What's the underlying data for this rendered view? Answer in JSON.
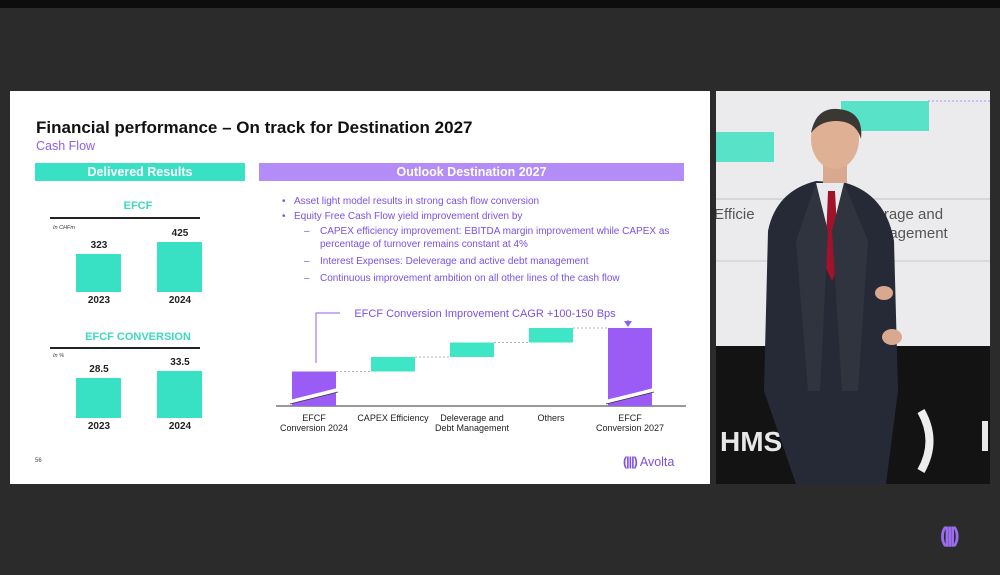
{
  "slide": {
    "title": "Financial performance – On track for Destination 2027",
    "subtitle": "Cash Flow",
    "page_number": "56",
    "logo_text": "Avolta",
    "logo_mark": "(|||)"
  },
  "delivered": {
    "header": "Delivered Results",
    "efcf": {
      "title": "EFCF",
      "unit": "In CHFm",
      "categories": [
        "2023",
        "2024"
      ],
      "values": [
        323,
        425
      ],
      "value_labels": [
        "323",
        "425"
      ]
    },
    "conversion": {
      "title": "EFCF CONVERSION",
      "unit": "In %",
      "categories": [
        "2023",
        "2024"
      ],
      "values": [
        28.5,
        33.5
      ],
      "value_labels": [
        "28.5",
        "33.5"
      ]
    }
  },
  "outlook": {
    "header": "Outlook Destination 2027",
    "bullets": [
      {
        "text": "Asset light model results in strong cash flow conversion",
        "sub": []
      },
      {
        "text": "Equity Free Cash Flow yield improvement driven by",
        "sub": [
          "CAPEX efficiency improvement: EBITDA margin improvement while CAPEX as percentage of turnover remains constant at 4%",
          "Interest Expenses: Deleverage and active debt management",
          "Continuous improvement ambition on all other lines of the cash flow"
        ]
      }
    ],
    "cagr_label": "EFCF Conversion Improvement CAGR +100-150 Bps"
  },
  "chart_data": [
    {
      "type": "bar",
      "title": "EFCF",
      "ylabel": "In CHFm",
      "categories": [
        "2023",
        "2024"
      ],
      "values": [
        323,
        425
      ]
    },
    {
      "type": "bar",
      "title": "EFCF CONVERSION",
      "ylabel": "In %",
      "categories": [
        "2023",
        "2024"
      ],
      "values": [
        28.5,
        33.5
      ]
    },
    {
      "type": "bar",
      "subtype": "waterfall",
      "title": "EFCF Conversion Improvement CAGR +100-150 Bps",
      "categories": [
        "EFCF Conversion 2024",
        "CAPEX Efficiency",
        "Deleverage and Debt Management",
        "Others",
        "EFCF Conversion 2027"
      ],
      "steps": [
        {
          "start": 0,
          "end": 1,
          "kind": "total"
        },
        {
          "start": 1,
          "end": 2,
          "kind": "increase"
        },
        {
          "start": 2,
          "end": 3,
          "kind": "increase"
        },
        {
          "start": 3,
          "end": 4,
          "kind": "increase"
        },
        {
          "start": 0,
          "end": 4,
          "kind": "total"
        }
      ],
      "values_labeled": false,
      "colors": {
        "total": "#9b5cf6",
        "increase": "#3fe6c6"
      }
    }
  ],
  "colors": {
    "green": "#38e0c4",
    "purple": "#b38cf8",
    "purple_text": "#7c4fe6"
  },
  "video": {
    "screen_text_line1": "Efficie",
    "screen_text_line1b": "verage and",
    "screen_text_line2": "nagement",
    "stage_letters": "HMS"
  },
  "corner_logo": "(|||)"
}
